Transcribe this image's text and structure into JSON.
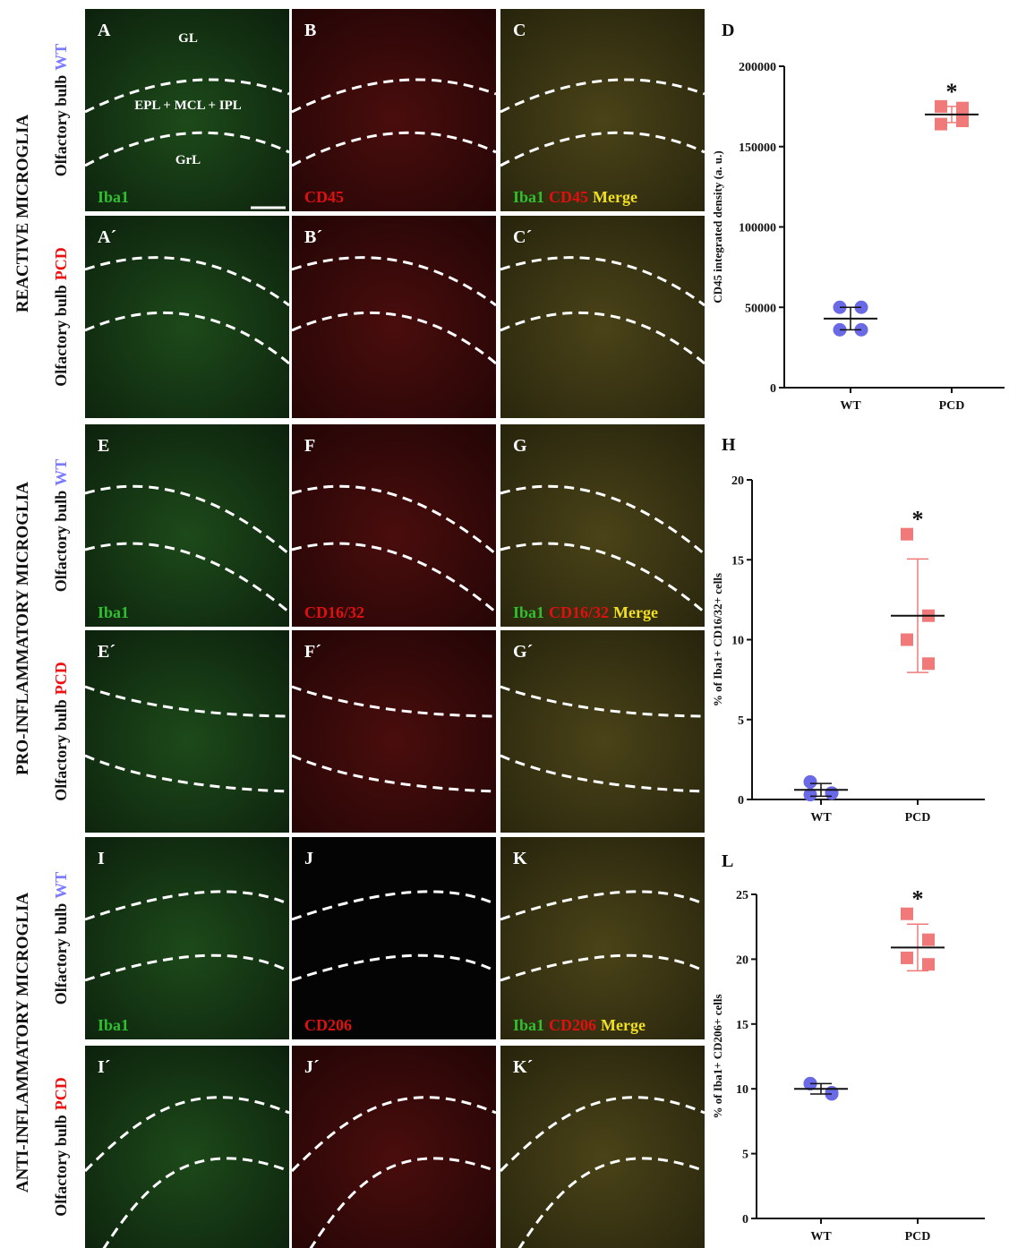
{
  "micrographs": {
    "layers": [
      "GL",
      "EPL + MCL + IPL",
      "GrL"
    ],
    "groups": [
      {
        "label": "REACTIVE MICROGLIA",
        "channels": {
          "green": "Iba1",
          "red": "CD45",
          "merge": "Merge"
        },
        "rows": [
          {
            "region": "Olfactory bulb",
            "genotype": "WT",
            "panels": [
              "A",
              "B",
              "C"
            ]
          },
          {
            "region": "Olfactory bulb",
            "genotype": "PCD",
            "panels": [
              "A´",
              "B´",
              "C´"
            ]
          }
        ]
      },
      {
        "label": "PRO-INFLAMMATORY MICROGLIA",
        "channels": {
          "green": "Iba1",
          "red": "CD16/32",
          "merge": "Merge"
        },
        "rows": [
          {
            "region": "Olfactory bulb",
            "genotype": "WT",
            "panels": [
              "E",
              "F",
              "G"
            ]
          },
          {
            "region": "Olfactory bulb",
            "genotype": "PCD",
            "panels": [
              "E´",
              "F´",
              "G´"
            ]
          }
        ]
      },
      {
        "label": "ANTI-INFLAMMATORY MICROGLIA",
        "channels": {
          "green": "Iba1",
          "red": "CD206",
          "merge": "Merge"
        },
        "rows": [
          {
            "region": "Olfactory bulb",
            "genotype": "WT",
            "panels": [
              "I",
              "J",
              "K"
            ]
          },
          {
            "region": "Olfactory bulb",
            "genotype": "PCD",
            "panels": [
              "I´",
              "J´",
              "K´"
            ]
          }
        ]
      }
    ]
  },
  "chart_data": [
    {
      "type": "scatter",
      "title": "D",
      "y_label": "CD45 integrated density (a. u.)",
      "categories": [
        "WT",
        "PCD"
      ],
      "colors": [
        "#6a6ae6",
        "#f07a7a"
      ],
      "markers": [
        "circle",
        "square"
      ],
      "values": [
        [
          50000,
          50000,
          36000,
          36000
        ],
        [
          175000,
          174000,
          164000,
          166000
        ]
      ],
      "means": [
        43000,
        170000
      ],
      "errors": [
        7000,
        5000
      ],
      "significance": "*",
      "ylim": [
        0,
        200000
      ],
      "yticks": [
        0,
        50000,
        100000,
        150000,
        200000
      ]
    },
    {
      "type": "scatter",
      "title": "H",
      "y_label": "% of Iba1+ CD16/32+ cells",
      "categories": [
        "WT",
        "PCD"
      ],
      "colors": [
        "#6a6ae6",
        "#f07a7a"
      ],
      "markers": [
        "circle",
        "square"
      ],
      "values": [
        [
          1.1,
          0.4,
          0.3,
          0.4
        ],
        [
          16.6,
          11.5,
          10.0,
          8.5
        ]
      ],
      "means": [
        0.6,
        11.5
      ],
      "errors": [
        0.4,
        3.55
      ],
      "significance": "*",
      "ylim": [
        0,
        20
      ],
      "yticks": [
        0,
        5,
        10,
        15,
        20
      ]
    },
    {
      "type": "scatter",
      "title": "L",
      "y_label": "% of Iba1+ CD206+ cells",
      "categories": [
        "WT",
        "PCD"
      ],
      "colors": [
        "#6a6ae6",
        "#f07a7a"
      ],
      "markers": [
        "circle",
        "square"
      ],
      "values": [
        [
          10.4,
          9.7,
          10.4,
          9.6
        ],
        [
          23.5,
          21.5,
          20.1,
          19.6
        ]
      ],
      "means": [
        10.0,
        20.9
      ],
      "errors": [
        0.4,
        1.8
      ],
      "significance": "*",
      "ylim": [
        0,
        25
      ],
      "yticks": [
        0,
        5,
        10,
        15,
        20,
        25
      ]
    }
  ]
}
